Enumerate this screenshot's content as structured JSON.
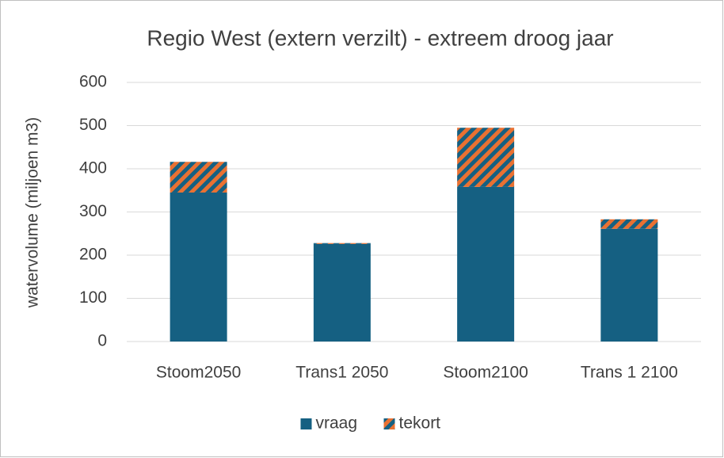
{
  "chart_data": {
    "type": "stacked_bar",
    "title": "Regio West (extern verzilt) - extreem droog jaar",
    "y_label": "watervolume (miljoen m3)",
    "categories": [
      "Stoom2050",
      "Trans1 2050",
      "Stoom2100",
      "Trans 1 2100"
    ],
    "series": [
      {
        "name": "vraag",
        "color": "#156082",
        "values": [
          345,
          226,
          358,
          261
        ]
      },
      {
        "name": "tekort",
        "color": "#e97132",
        "pattern": "hatch",
        "values": [
          71,
          2,
          137,
          22
        ]
      }
    ],
    "ylim": [
      0,
      600
    ],
    "yticks": [
      0,
      100,
      200,
      300,
      400,
      500,
      600
    ],
    "grid": true,
    "legend": "bottom"
  }
}
